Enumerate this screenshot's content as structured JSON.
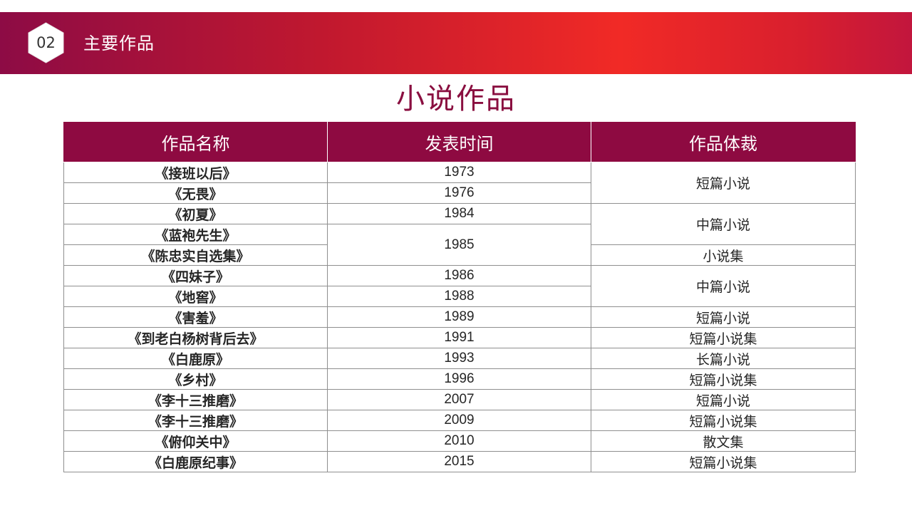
{
  "header": {
    "section_number": "02",
    "section_title": "主要作品"
  },
  "page": {
    "title": "小说作品"
  },
  "table": {
    "headers": [
      "作品名称",
      "发表时间",
      "作品体裁"
    ],
    "names": [
      "《接班以后》",
      "《无畏》",
      "《初夏》",
      "《蓝袍先生》",
      "《陈忠实自选集》",
      "《四妹子》",
      "《地窖》",
      "《害羞》",
      "《到老白杨树背后去》",
      "《白鹿原》",
      "《乡村》",
      "《李十三推磨》",
      "《李十三推磨》",
      "《俯仰关中》",
      "《白鹿原纪事》"
    ],
    "years": [
      "1973",
      "1976",
      "1984",
      "1985",
      "1986",
      "1988",
      "1989",
      "1991",
      "1993",
      "1996",
      "2007",
      "2009",
      "2010",
      "2015"
    ],
    "genres": [
      "短篇小说",
      "中篇小说",
      "小说集",
      "中篇小说",
      "短篇小说",
      "短篇小说集",
      "长篇小说",
      "短篇小说集",
      "短篇小说",
      "短篇小说集",
      "散文集",
      "短篇小说集"
    ]
  },
  "colors": {
    "accent": "#8e0a41",
    "banner_mid": "#f12a26"
  }
}
